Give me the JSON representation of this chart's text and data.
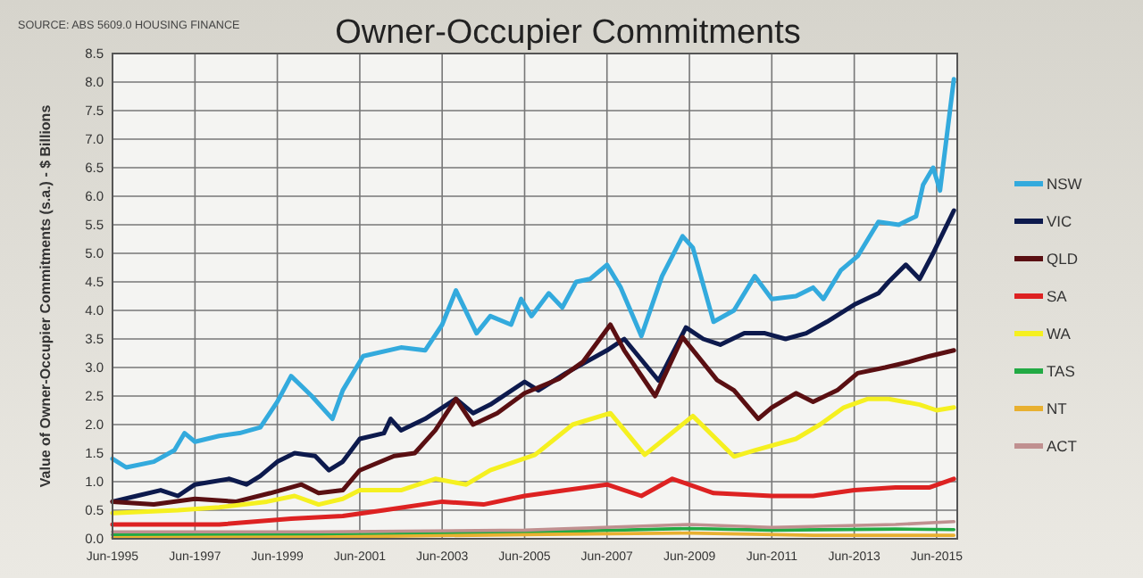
{
  "chart_data": {
    "type": "line",
    "title": "Owner-Occupier Commitments",
    "ylabel": "Value of Owner-Occupier Commitments (s.a.) - $ Billions",
    "annotations": [
      "SOURCE: ABS 5609.0 HOUSING FINANCE"
    ],
    "xlim": [
      "1995-06",
      "2015-12"
    ],
    "xticks": [
      {
        "value": "1995-06",
        "label": "Jun-1995"
      },
      {
        "value": "1997-06",
        "label": "Jun-1997"
      },
      {
        "value": "1999-06",
        "label": "Jun-1999"
      },
      {
        "value": "2001-06",
        "label": "Jun-2001"
      },
      {
        "value": "2003-06",
        "label": "Jun-2003"
      },
      {
        "value": "2005-06",
        "label": "Jun-2005"
      },
      {
        "value": "2007-06",
        "label": "Jun-2007"
      },
      {
        "value": "2009-06",
        "label": "Jun-2009"
      },
      {
        "value": "2011-06",
        "label": "Jun-2011"
      },
      {
        "value": "2013-06",
        "label": "Jun-2013"
      },
      {
        "value": "2015-06",
        "label": "Jun-2015"
      }
    ],
    "ylim": [
      0,
      8.5
    ],
    "yticks": [
      {
        "value": 0,
        "label": "0.0"
      },
      {
        "value": 0.5,
        "label": "0.5"
      },
      {
        "value": 1,
        "label": "1.0"
      },
      {
        "value": 1.5,
        "label": "1.5"
      },
      {
        "value": 2,
        "label": "2.0"
      },
      {
        "value": 2.5,
        "label": "2.5"
      },
      {
        "value": 3,
        "label": "3.0"
      },
      {
        "value": 3.5,
        "label": "3.5"
      },
      {
        "value": 4,
        "label": "4.0"
      },
      {
        "value": 4.5,
        "label": "4.5"
      },
      {
        "value": 5,
        "label": "5.0"
      },
      {
        "value": 5.5,
        "label": "5.5"
      },
      {
        "value": 6,
        "label": "6.0"
      },
      {
        "value": 6.5,
        "label": "6.5"
      },
      {
        "value": 7,
        "label": "7.0"
      },
      {
        "value": 7.5,
        "label": "7.5"
      },
      {
        "value": 8,
        "label": "8.0"
      },
      {
        "value": 8.5,
        "label": "8.5"
      }
    ],
    "grid": true,
    "legend": "right",
    "line_style": "solid",
    "series": [
      {
        "name": "NSW",
        "color": "#33aadd",
        "x": [
          "1995-06",
          "1995-10",
          "1996-06",
          "1996-12",
          "1997-03",
          "1997-06",
          "1998-01",
          "1998-07",
          "1999-01",
          "1999-06",
          "1999-10",
          "2000-04",
          "2000-10",
          "2001-01",
          "2001-07",
          "2002-06",
          "2003-01",
          "2003-06",
          "2003-10",
          "2004-04",
          "2004-08",
          "2005-02",
          "2005-05",
          "2005-08",
          "2006-01",
          "2006-05",
          "2006-09",
          "2007-01",
          "2007-06",
          "2007-10",
          "2008-04",
          "2008-10",
          "2009-04",
          "2009-07",
          "2010-01",
          "2010-07",
          "2011-01",
          "2011-06",
          "2012-01",
          "2012-06",
          "2012-09",
          "2013-02",
          "2013-07",
          "2014-01",
          "2014-07",
          "2014-12",
          "2015-02",
          "2015-05",
          "2015-07",
          "2015-11"
        ],
        "values": [
          1.4,
          1.25,
          1.35,
          1.55,
          1.85,
          1.7,
          1.8,
          1.85,
          1.95,
          2.4,
          2.85,
          2.5,
          2.1,
          2.6,
          3.2,
          3.35,
          3.3,
          3.75,
          4.35,
          3.6,
          3.9,
          3.75,
          4.2,
          3.9,
          4.3,
          4.05,
          4.5,
          4.55,
          4.8,
          4.4,
          3.55,
          4.6,
          5.3,
          5.1,
          3.8,
          4.0,
          4.6,
          4.2,
          4.25,
          4.4,
          4.2,
          4.7,
          4.95,
          5.55,
          5.5,
          5.65,
          6.2,
          6.5,
          6.1,
          8.05
        ]
      },
      {
        "name": "VIC",
        "color": "#0d1a4d",
        "x": [
          "1995-06",
          "1996-01",
          "1996-08",
          "1997-01",
          "1997-06",
          "1998-04",
          "1998-09",
          "1999-01",
          "1999-06",
          "1999-11",
          "2000-05",
          "2000-09",
          "2001-01",
          "2001-06",
          "2002-01",
          "2002-03",
          "2002-06",
          "2003-01",
          "2003-10",
          "2004-03",
          "2004-08",
          "2005-06",
          "2005-10",
          "2006-06",
          "2007-06",
          "2007-11",
          "2008-09",
          "2009-05",
          "2009-10",
          "2010-03",
          "2010-10",
          "2011-04",
          "2011-10",
          "2012-04",
          "2012-10",
          "2013-06",
          "2014-01",
          "2014-04",
          "2014-09",
          "2015-01",
          "2015-05",
          "2015-11"
        ],
        "values": [
          0.65,
          0.75,
          0.85,
          0.75,
          0.95,
          1.05,
          0.95,
          1.1,
          1.35,
          1.5,
          1.45,
          1.2,
          1.35,
          1.75,
          1.85,
          2.1,
          1.9,
          2.1,
          2.45,
          2.2,
          2.35,
          2.75,
          2.6,
          2.9,
          3.3,
          3.5,
          2.77,
          3.7,
          3.5,
          3.4,
          3.6,
          3.6,
          3.5,
          3.6,
          3.8,
          4.1,
          4.3,
          4.5,
          4.8,
          4.55,
          5.0,
          5.75
        ]
      },
      {
        "name": "QLD",
        "color": "#5a0f12",
        "x": [
          "1995-06",
          "1996-06",
          "1997-06",
          "1998-06",
          "1999-04",
          "2000-01",
          "2000-06",
          "2001-01",
          "2001-06",
          "2002-04",
          "2002-10",
          "2003-04",
          "2003-10",
          "2004-03",
          "2004-10",
          "2005-06",
          "2006-04",
          "2006-11",
          "2007-07",
          "2007-11",
          "2008-08",
          "2009-04",
          "2010-02",
          "2010-07",
          "2011-02",
          "2011-06",
          "2012-01",
          "2012-06",
          "2013-01",
          "2013-07",
          "2014-03",
          "2014-10",
          "2015-04",
          "2015-11"
        ],
        "values": [
          0.65,
          0.6,
          0.7,
          0.65,
          0.8,
          0.95,
          0.8,
          0.85,
          1.2,
          1.45,
          1.5,
          1.9,
          2.45,
          2.0,
          2.2,
          2.55,
          2.8,
          3.1,
          3.75,
          3.3,
          2.5,
          3.53,
          2.78,
          2.6,
          2.1,
          2.3,
          2.55,
          2.4,
          2.6,
          2.9,
          3.0,
          3.1,
          3.2,
          3.3
        ]
      },
      {
        "name": "SA",
        "color": "#dd2222",
        "x": [
          "1995-06",
          "1998-01",
          "1999-10",
          "2001-01",
          "2002-01",
          "2003-06",
          "2004-06",
          "2005-06",
          "2006-06",
          "2007-06",
          "2008-04",
          "2009-01",
          "2010-01",
          "2011-06",
          "2012-06",
          "2013-06",
          "2014-06",
          "2015-04",
          "2015-11"
        ],
        "values": [
          0.25,
          0.25,
          0.35,
          0.4,
          0.5,
          0.65,
          0.6,
          0.75,
          0.85,
          0.95,
          0.75,
          1.05,
          0.8,
          0.75,
          0.75,
          0.85,
          0.9,
          0.9,
          1.05
        ]
      },
      {
        "name": "WA",
        "color": "#f5f020",
        "x": [
          "1995-06",
          "1997-01",
          "1998-01",
          "1999-03",
          "1999-11",
          "2000-06",
          "2001-01",
          "2001-06",
          "2002-06",
          "2003-04",
          "2004-01",
          "2004-08",
          "2005-09",
          "2006-08",
          "2007-07",
          "2008-05",
          "2009-07",
          "2010-07",
          "2011-01",
          "2012-01",
          "2012-08",
          "2013-03",
          "2013-10",
          "2014-04",
          "2015-01",
          "2015-06",
          "2015-11"
        ],
        "values": [
          0.45,
          0.5,
          0.55,
          0.65,
          0.75,
          0.6,
          0.7,
          0.85,
          0.85,
          1.05,
          0.95,
          1.2,
          1.47,
          2.0,
          2.2,
          1.47,
          2.15,
          1.44,
          1.55,
          1.75,
          2.0,
          2.3,
          2.45,
          2.45,
          2.35,
          2.25,
          2.3
        ]
      },
      {
        "name": "TAS",
        "color": "#22aa44",
        "x": [
          "1995-06",
          "1999-06",
          "2002-06",
          "2006-06",
          "2009-06",
          "2011-06",
          "2014-06",
          "2015-11"
        ],
        "values": [
          0.07,
          0.07,
          0.08,
          0.13,
          0.18,
          0.15,
          0.17,
          0.16
        ]
      },
      {
        "name": "NT",
        "color": "#e8b030",
        "x": [
          "1995-06",
          "2000-06",
          "2006-06",
          "2009-06",
          "2012-06",
          "2015-11"
        ],
        "values": [
          0.02,
          0.03,
          0.08,
          0.1,
          0.06,
          0.06
        ]
      },
      {
        "name": "ACT",
        "color": "#c09090",
        "x": [
          "1995-06",
          "2000-06",
          "2005-06",
          "2009-06",
          "2011-06",
          "2014-06",
          "2015-11"
        ],
        "values": [
          0.12,
          0.12,
          0.15,
          0.25,
          0.2,
          0.25,
          0.3
        ]
      }
    ]
  }
}
